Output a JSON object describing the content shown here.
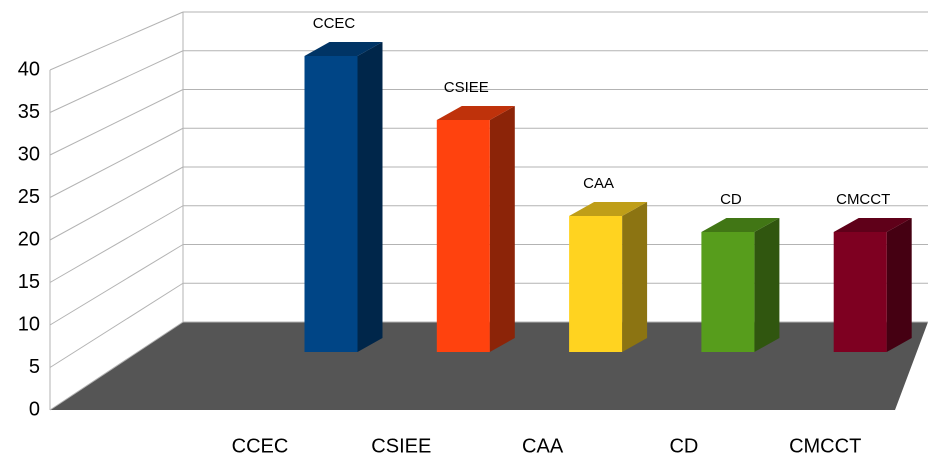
{
  "chart_data": {
    "type": "bar3d",
    "categories": [
      "CCEC",
      "CSIEE",
      "CAA",
      "CD",
      "CMCCT"
    ],
    "values": [
      37,
      29,
      17,
      15,
      15
    ],
    "colors": [
      "#004586",
      "#ff420e",
      "#ffd320",
      "#579d1c",
      "#7e0021"
    ],
    "ylim": [
      0,
      40
    ],
    "yticks": [
      0,
      5,
      10,
      15,
      20,
      25,
      30,
      35,
      40
    ],
    "grid": true,
    "data_labels": true
  }
}
